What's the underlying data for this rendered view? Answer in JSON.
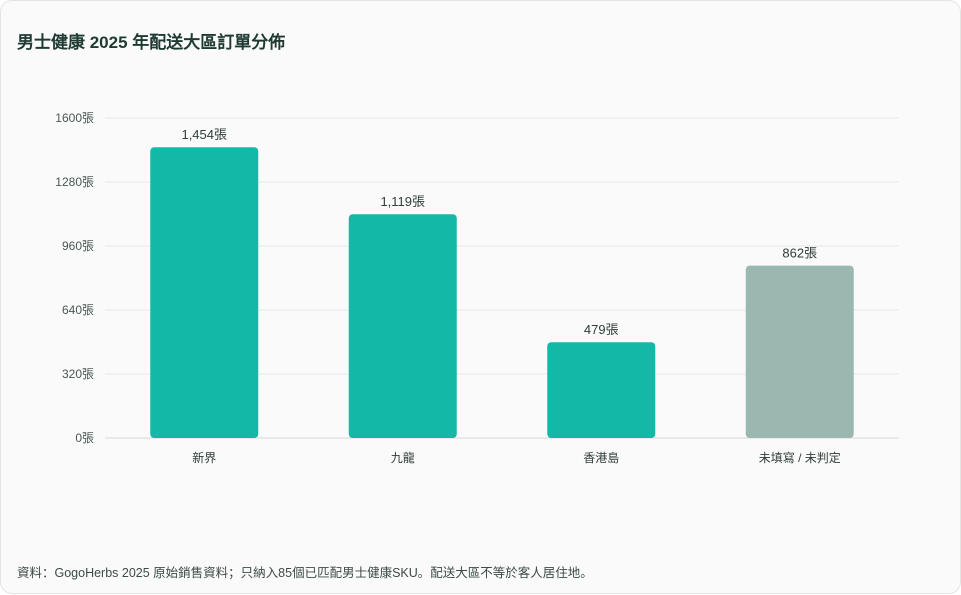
{
  "chart_data": {
    "type": "bar",
    "title": "男士健康 2025 年配送大區訂單分佈",
    "categories": [
      "新界",
      "九龍",
      "香港島",
      "未填寫 / 未判定"
    ],
    "values": [
      1454,
      1119,
      479,
      862
    ],
    "value_labels": [
      "1,454張",
      "1,119張",
      "479張",
      "862張"
    ],
    "yticks": [
      0,
      320,
      640,
      960,
      1280,
      1600
    ],
    "ytick_labels": [
      "0張",
      "320張",
      "640張",
      "960張",
      "1280張",
      "1600張"
    ],
    "ylim": [
      0,
      1600
    ],
    "grid": true,
    "colors": [
      "#14b8a6",
      "#14b8a6",
      "#14b8a6",
      "#9bb8b0"
    ]
  },
  "footnote": "資料：GogoHerbs 2025 原始銷售資料；只納入85個已匹配男士健康SKU。配送大區不等於客人居住地。"
}
